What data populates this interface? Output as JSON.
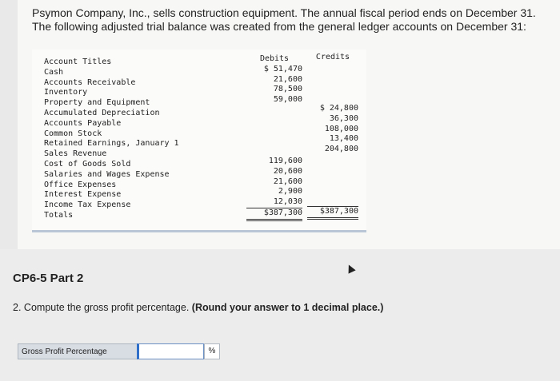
{
  "intro_text": "Psymon Company, Inc., sells construction equipment. The annual fiscal period ends on December 31. The following adjusted trial balance was created from the general ledger accounts on December 31:",
  "trial_balance": {
    "headers": {
      "account": "Account Titles",
      "debits": "Debits",
      "credits": "Credits"
    },
    "accounts": [
      "Cash",
      "Accounts Receivable",
      "Inventory",
      "Property and Equipment",
      "Accumulated Depreciation",
      "Accounts Payable",
      "Common Stock",
      "Retained Earnings, January 1",
      "Sales Revenue",
      "Cost of Goods Sold",
      "Salaries and Wages Expense",
      "Office Expenses",
      "Interest Expense",
      "Income Tax Expense",
      "Totals"
    ],
    "debits_top": [
      "$ 51,470",
      "21,600",
      "78,500",
      "59,000"
    ],
    "credits": [
      "$ 24,800",
      "36,300",
      "108,000",
      "13,400",
      "204,800"
    ],
    "debits_bottom": [
      "119,600",
      "20,600",
      "21,600",
      "2,900",
      "12,030"
    ],
    "total_debits": "$387,300",
    "total_credits": "$387,300"
  },
  "part_title": "CP6-5 Part 2",
  "question": {
    "number": "2.",
    "text": "Compute the gross profit percentage.",
    "instruction": "(Round your answer to 1 decimal place.)"
  },
  "answer": {
    "label": "Gross Profit Percentage",
    "value": "",
    "unit": "%"
  }
}
